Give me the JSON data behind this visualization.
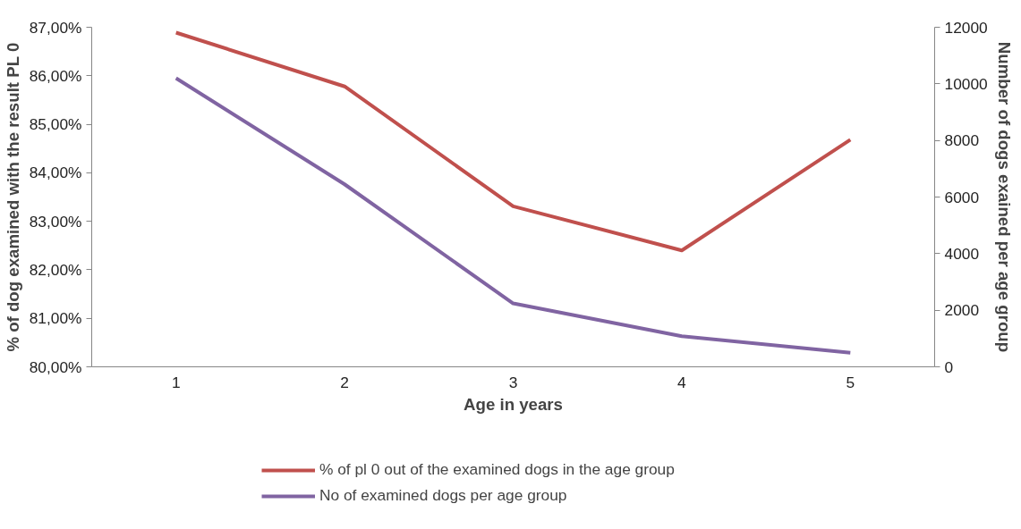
{
  "chart_data": {
    "type": "line",
    "xlabel": "Age in years",
    "ylabel": "% of dog examined with the result PL 0",
    "y2label": "Number of dogs exained per age group",
    "categories": [
      "1",
      "2",
      "3",
      "4",
      "5"
    ],
    "series": [
      {
        "name": "% of pl 0 out of the examined dogs in the age group",
        "color": "#c0504d",
        "values": [
          86.89,
          85.78,
          83.31,
          82.4,
          84.68
        ]
      },
      {
        "name": "No of examined dogs per age group",
        "color": "#8064a2",
        "axis": "y2",
        "values": [
          10200,
          6450,
          2240,
          1080,
          500
        ]
      }
    ],
    "ylim": [
      80,
      87
    ],
    "yticks": [
      {
        "value": 80,
        "label": "80,00%"
      },
      {
        "value": 81,
        "label": "81,00%"
      },
      {
        "value": 82,
        "label": "82,00%"
      },
      {
        "value": 83,
        "label": "83,00%"
      },
      {
        "value": 84,
        "label": "84,00%"
      },
      {
        "value": 85,
        "label": "85,00%"
      },
      {
        "value": 86,
        "label": "86,00%"
      },
      {
        "value": 87,
        "label": "87,00%"
      }
    ],
    "y2lim": [
      0,
      12000
    ],
    "y2ticks": [
      0,
      2000,
      4000,
      6000,
      8000,
      10000,
      12000
    ],
    "grid": false,
    "legend": "bottom",
    "marker": "none",
    "line_style": "solid"
  }
}
